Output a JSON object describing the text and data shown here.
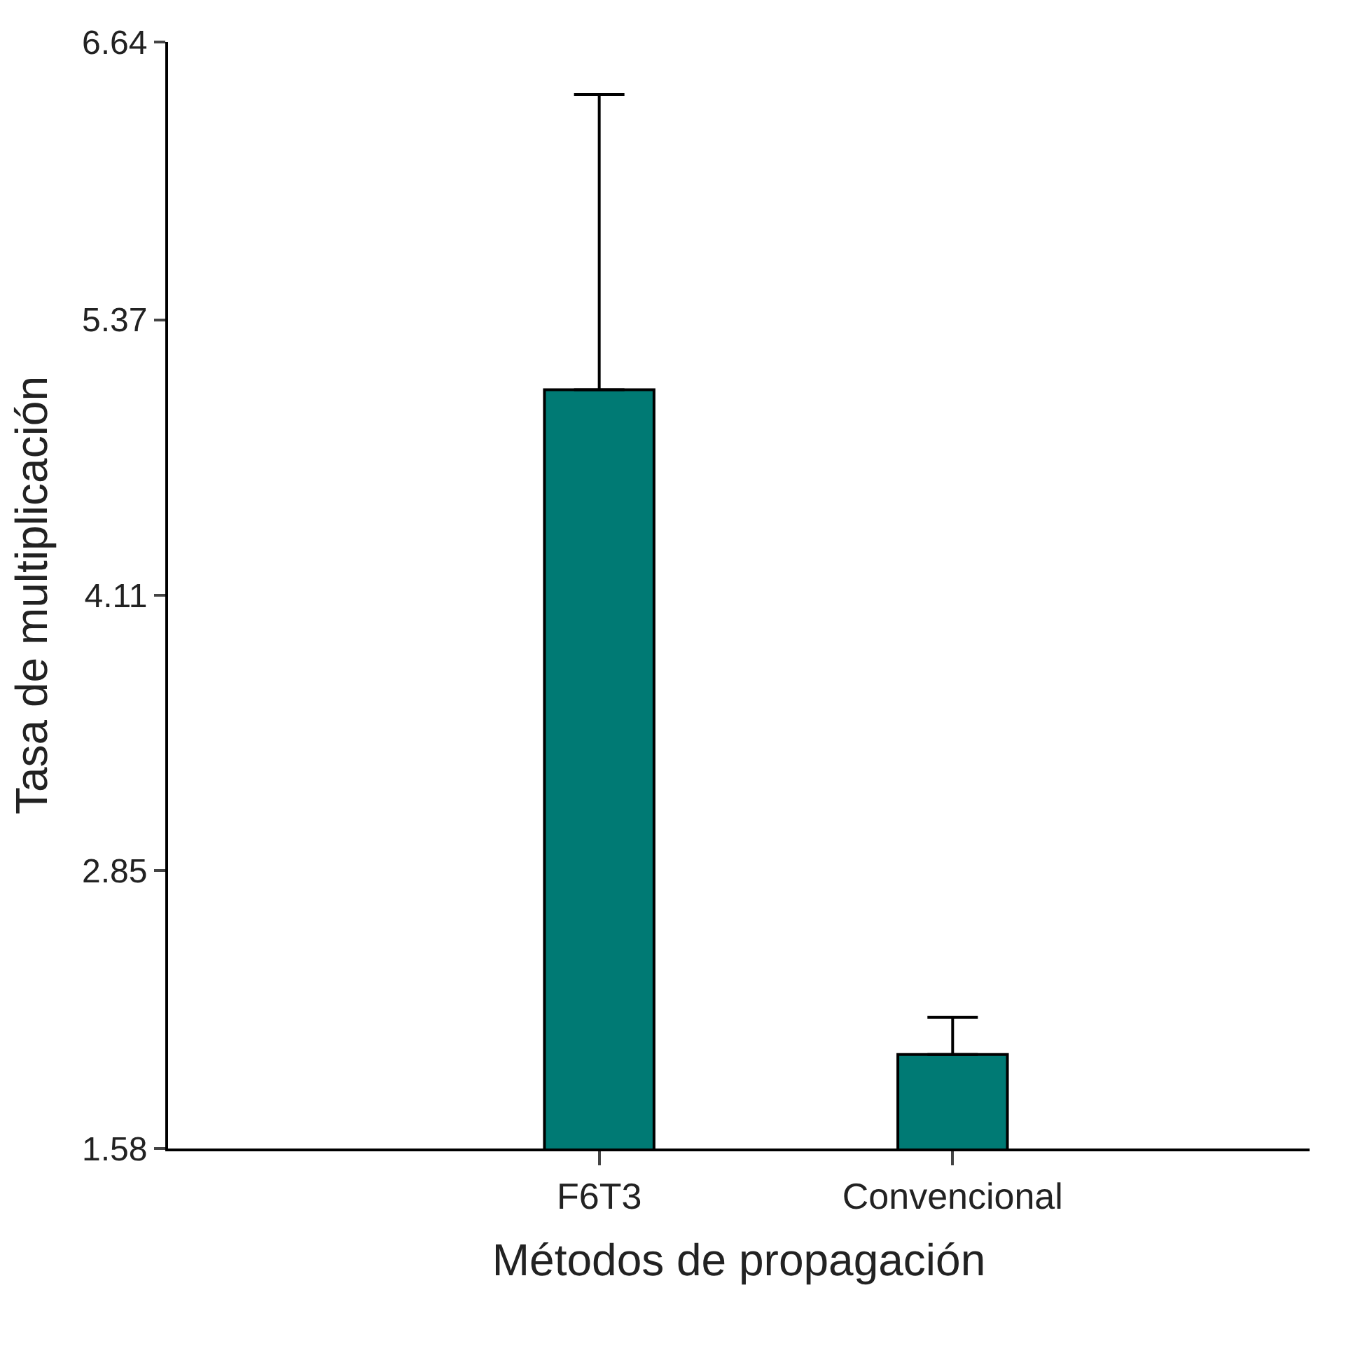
{
  "chart_data": {
    "type": "bar",
    "xlabel": "Métodos de propagación",
    "ylabel": "Tasa de multiplicación",
    "categories": [
      "F6T3",
      "Convencional"
    ],
    "values": [
      5.05,
      2.01
    ],
    "errors": [
      [
        5.05,
        6.4
      ],
      [
        2.01,
        2.18
      ]
    ],
    "color": "#007a74",
    "ylim": [
      1.58,
      6.64
    ],
    "yticks": [
      1.58,
      2.85,
      4.11,
      5.37,
      6.64
    ],
    "grid": false
  }
}
